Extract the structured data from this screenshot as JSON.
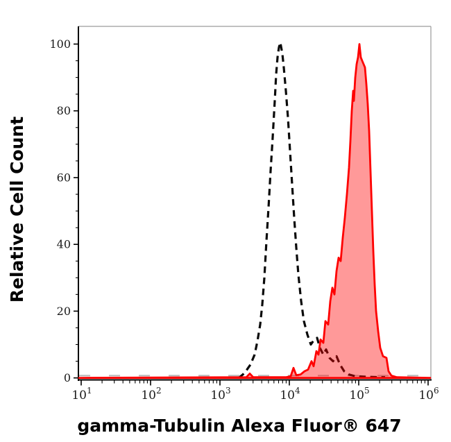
{
  "figure": {
    "kind": "flow-cytometry-overlay-histogram"
  },
  "chart_data": {
    "type": "area",
    "title": "",
    "xlabel": "gamma-Tubulin Alexa Fluor® 647",
    "ylabel": "Relative Cell Count",
    "x_scale": "log10",
    "xlim_log10": [
      0.96,
      6.04
    ],
    "ylim": [
      -0.7,
      105.3
    ],
    "x_tick_exponents": [
      1,
      2,
      3,
      4,
      5,
      6
    ],
    "x_tick_base": "10",
    "y_ticks": [
      0,
      20,
      40,
      60,
      80,
      100
    ],
    "y_minor_step": 5,
    "grid": false,
    "legend_position": "none",
    "colors": {
      "red_stroke": "#fe0000",
      "red_fill": "rgba(255,0,0,0.40)",
      "black_dashed": "#0a0a0a",
      "gray_baseline": "#b9b9b9",
      "axis": "#000000",
      "border": "#9a9a9a"
    },
    "series": [
      {
        "name": "baseline-zero-gray-dashed",
        "style": "gray-dashed-line",
        "points_log10x_y": [
          [
            0.97,
            0.7
          ],
          [
            6.03,
            0.7
          ]
        ]
      },
      {
        "name": "unstained-control-black-dashed",
        "style": "black-dashed-line",
        "peak_log10x": 3.87,
        "peak_y": 100,
        "points_log10x_y": [
          [
            3.27,
            0
          ],
          [
            3.33,
            1
          ],
          [
            3.39,
            2.5
          ],
          [
            3.44,
            4
          ],
          [
            3.5,
            7
          ],
          [
            3.54,
            11
          ],
          [
            3.58,
            16
          ],
          [
            3.61,
            22
          ],
          [
            3.64,
            30
          ],
          [
            3.67,
            41
          ],
          [
            3.7,
            51
          ],
          [
            3.73,
            62
          ],
          [
            3.76,
            72
          ],
          [
            3.79,
            83
          ],
          [
            3.81,
            91
          ],
          [
            3.83,
            96
          ],
          [
            3.85,
            99
          ],
          [
            3.87,
            100.5
          ],
          [
            3.9,
            97
          ],
          [
            3.92,
            93
          ],
          [
            3.95,
            86
          ],
          [
            3.98,
            78
          ],
          [
            4.01,
            68
          ],
          [
            4.04,
            58
          ],
          [
            4.07,
            48
          ],
          [
            4.1,
            39
          ],
          [
            4.13,
            31
          ],
          [
            4.17,
            23
          ],
          [
            4.21,
            17
          ],
          [
            4.26,
            13
          ],
          [
            4.31,
            10
          ],
          [
            4.36,
            11.5
          ],
          [
            4.4,
            12
          ],
          [
            4.44,
            9
          ],
          [
            4.49,
            7
          ],
          [
            4.53,
            8.5
          ],
          [
            4.58,
            6
          ],
          [
            4.63,
            5
          ],
          [
            4.68,
            6.5
          ],
          [
            4.73,
            4
          ],
          [
            4.79,
            2
          ],
          [
            4.86,
            1
          ],
          [
            4.95,
            0.5
          ],
          [
            5.15,
            0.3
          ],
          [
            5.38,
            0.2
          ]
        ]
      },
      {
        "name": "gamma-tubulin-stained-red-filled",
        "style": "red-filled-area",
        "peak_log10x": 5.01,
        "peak_y": 100,
        "points_log10x_y": [
          [
            0.97,
            0
          ],
          [
            3.38,
            0.2
          ],
          [
            3.43,
            1.3
          ],
          [
            3.48,
            0.2
          ],
          [
            3.95,
            0.2
          ],
          [
            4.02,
            0.5
          ],
          [
            4.06,
            3
          ],
          [
            4.1,
            0.8
          ],
          [
            4.16,
            1
          ],
          [
            4.22,
            2
          ],
          [
            4.27,
            2.5
          ],
          [
            4.32,
            5
          ],
          [
            4.35,
            3.5
          ],
          [
            4.39,
            8
          ],
          [
            4.42,
            7
          ],
          [
            4.45,
            11.5
          ],
          [
            4.49,
            10.5
          ],
          [
            4.52,
            17
          ],
          [
            4.56,
            16
          ],
          [
            4.59,
            23
          ],
          [
            4.62,
            27
          ],
          [
            4.65,
            25
          ],
          [
            4.68,
            32
          ],
          [
            4.71,
            36
          ],
          [
            4.74,
            35
          ],
          [
            4.77,
            42
          ],
          [
            4.8,
            48
          ],
          [
            4.83,
            55
          ],
          [
            4.86,
            63
          ],
          [
            4.88,
            71
          ],
          [
            4.9,
            80
          ],
          [
            4.92,
            86
          ],
          [
            4.93,
            83
          ],
          [
            4.95,
            90
          ],
          [
            4.97,
            94
          ],
          [
            4.99,
            96
          ],
          [
            5.01,
            100
          ],
          [
            5.03,
            96
          ],
          [
            5.06,
            94.5
          ],
          [
            5.09,
            93
          ],
          [
            5.11,
            88
          ],
          [
            5.13,
            82
          ],
          [
            5.15,
            74
          ],
          [
            5.17,
            62
          ],
          [
            5.19,
            50
          ],
          [
            5.21,
            38
          ],
          [
            5.23,
            28
          ],
          [
            5.25,
            20
          ],
          [
            5.28,
            14
          ],
          [
            5.31,
            9
          ],
          [
            5.35,
            6.5
          ],
          [
            5.4,
            6
          ],
          [
            5.43,
            2
          ],
          [
            5.47,
            0.7
          ],
          [
            5.55,
            0.2
          ],
          [
            6.03,
            0
          ]
        ]
      }
    ]
  }
}
